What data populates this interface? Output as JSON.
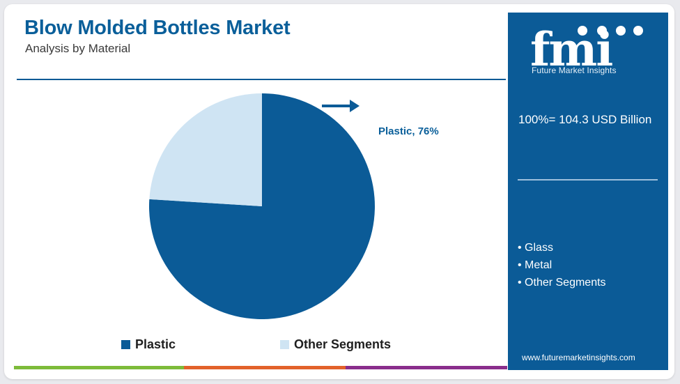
{
  "header": {
    "title": "Blow Molded Bottles Market",
    "subtitle": "Analysis by Material"
  },
  "chart_data": {
    "type": "pie",
    "categories": [
      "Plastic",
      "Other Segments"
    ],
    "values": [
      76,
      24
    ],
    "colors": [
      "#0b5b97",
      "#cfe4f3"
    ],
    "callout": "Plastic, 76%",
    "legend_position": "bottom",
    "legend": [
      "Plastic",
      "Other Segments"
    ]
  },
  "sidebar": {
    "logo_letters": "fmi",
    "logo_caption": "Future Market Insights",
    "total_text": "100%= 104.3 USD Billion",
    "segments": [
      "Glass",
      "Metal",
      "Other Segments"
    ],
    "website": "www.futuremarketinsights.com"
  },
  "footer_colors": [
    "#7dbb3a",
    "#e2622a",
    "#8a2e8c"
  ],
  "colors": {
    "brand_blue": "#0b5b97",
    "panel_blue": "#0b5b97"
  }
}
